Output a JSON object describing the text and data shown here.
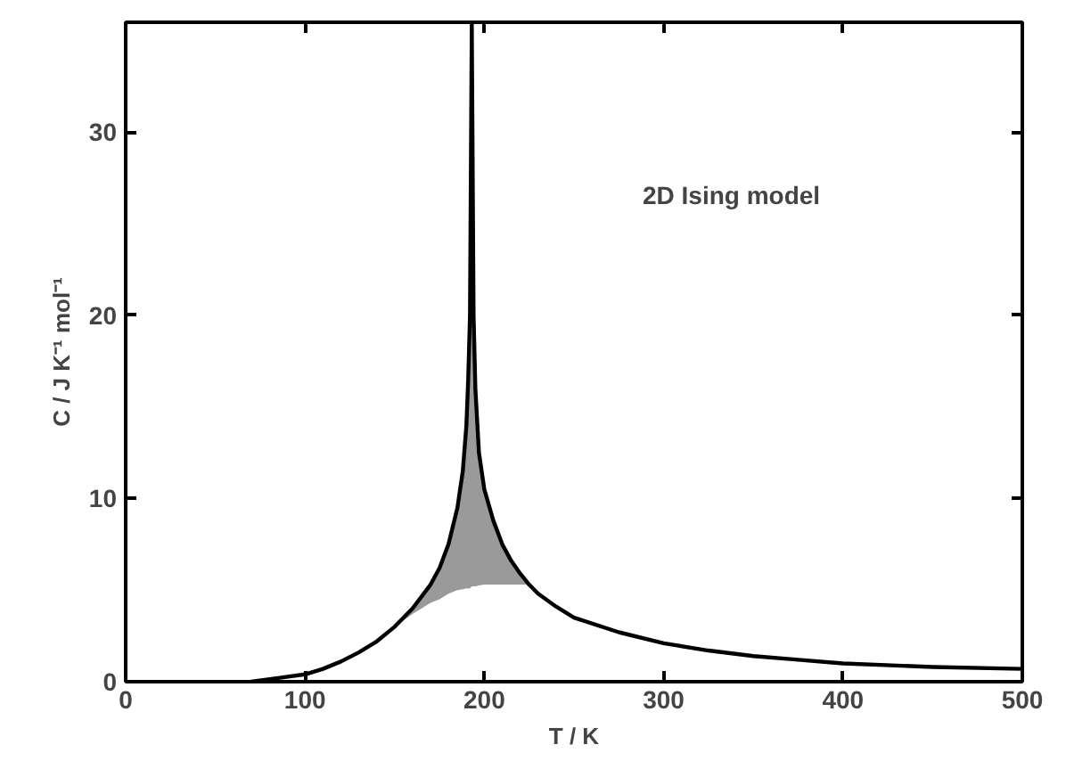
{
  "chart_data": {
    "type": "line",
    "xlabel": "T / K",
    "ylabel": "C / J K⁻¹ mol⁻¹",
    "annotations": [
      "2D Ising model"
    ],
    "x": [
      70,
      85,
      100,
      110,
      120,
      130,
      140,
      150,
      160,
      170,
      175,
      180,
      185,
      188,
      190,
      191,
      192,
      193,
      194,
      195,
      197,
      200,
      205,
      210,
      215,
      220,
      225,
      230,
      240,
      250,
      275,
      300,
      325,
      350,
      375,
      400,
      450,
      500
    ],
    "series": [
      {
        "color": "#000000",
        "values": [
          0,
          0.2,
          0.4,
          0.7,
          1.1,
          1.6,
          2.2,
          3.0,
          4.0,
          5.3,
          6.2,
          7.5,
          9.5,
          11.5,
          14,
          16.5,
          20,
          36,
          20,
          16,
          12.5,
          10.5,
          8.8,
          7.5,
          6.6,
          5.9,
          5.3,
          4.8,
          4.1,
          3.5,
          2.7,
          2.1,
          1.7,
          1.4,
          1.2,
          1.0,
          0.8,
          0.7
        ],
        "lower": [
          null,
          null,
          null,
          null,
          null,
          null,
          null,
          3.0,
          3.7,
          4.3,
          4.5,
          4.8,
          5.0,
          5.05,
          5.1,
          5.1,
          5.1,
          5.2,
          5.2,
          5.2,
          5.25,
          5.3,
          5.3,
          5.3,
          5.3,
          5.3,
          5.3,
          null,
          null,
          null,
          null,
          null,
          null,
          null,
          null,
          null,
          null,
          null
        ],
        "upper": [
          null,
          null,
          null,
          null,
          null,
          null,
          null,
          3.0,
          4.0,
          5.3,
          6.2,
          7.5,
          9.5,
          11.5,
          14,
          16.5,
          20,
          36,
          20,
          16,
          12.5,
          10.5,
          8.8,
          7.5,
          6.6,
          5.9,
          5.3,
          null,
          null,
          null,
          null,
          null,
          null,
          null,
          null,
          null,
          null,
          null
        ]
      }
    ],
    "xlim": [
      0,
      500
    ],
    "ylim": [
      0,
      36
    ],
    "xticks": [
      0,
      100,
      200,
      300,
      400,
      500
    ],
    "yticks": [
      0,
      10,
      20,
      30
    ],
    "grid": false,
    "marker": "none",
    "line_style": "solid"
  }
}
